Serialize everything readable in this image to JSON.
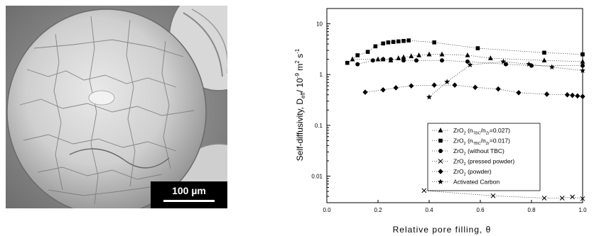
{
  "micrograph": {
    "scale_bar_label": "100 µm"
  },
  "chart_data": {
    "type": "scatter",
    "xlabel": "Relative pore filling, θ",
    "ylabel_parts": {
      "main": "Self-diffusivity, D",
      "sub": "eff",
      "unit": "/ 10",
      "exp": "-9",
      "m": " m",
      "exp2": "2",
      "s": " s",
      "exp3": "-1"
    },
    "xlim": [
      0.0,
      1.0
    ],
    "ylim": [
      0.003,
      20
    ],
    "yscale": "log",
    "xticks": [
      "0.0",
      "0.2",
      "0.4",
      "0.6",
      "0.8",
      "1.0"
    ],
    "yticks": [
      {
        "value": 10,
        "label": "10"
      },
      {
        "value": 1,
        "label": "1"
      },
      {
        "value": 0.1,
        "label": "0.1"
      },
      {
        "value": 0.01,
        "label": "0.01"
      }
    ],
    "legend_position": "center-right",
    "series": [
      {
        "name_parts": [
          "ZrO",
          "2",
          " (n",
          "TBC",
          "/n",
          "Zr",
          "=0.027)"
        ],
        "marker": "triangle",
        "x": [
          0.1,
          0.2,
          0.22,
          0.25,
          0.28,
          0.3,
          0.33,
          0.36,
          0.4,
          0.45,
          0.55,
          0.64,
          0.85,
          1.0
        ],
        "y": [
          2.0,
          2.0,
          2.0,
          1.9,
          2.1,
          2.2,
          2.3,
          2.4,
          2.5,
          2.5,
          2.4,
          2.1,
          1.9,
          1.8
        ]
      },
      {
        "name_parts": [
          "ZrO",
          "2",
          " (n",
          "TBC",
          "/n",
          "Zr",
          "=0.017)"
        ],
        "marker": "square",
        "x": [
          0.08,
          0.12,
          0.16,
          0.19,
          0.22,
          0.24,
          0.26,
          0.28,
          0.3,
          0.32,
          0.42,
          0.59,
          0.85,
          1.0
        ],
        "y": [
          1.7,
          2.4,
          2.8,
          3.6,
          4.1,
          4.3,
          4.4,
          4.5,
          4.6,
          4.7,
          4.3,
          3.3,
          2.7,
          2.5
        ]
      },
      {
        "name_parts": [
          "ZrO",
          "2",
          " (without TBC)"
        ],
        "marker": "circle",
        "x": [
          0.12,
          0.18,
          0.22,
          0.25,
          0.3,
          0.35,
          0.45,
          0.55,
          0.7,
          0.8,
          1.0
        ],
        "y": [
          1.6,
          1.9,
          2.0,
          2.0,
          1.9,
          1.9,
          1.9,
          1.8,
          1.6,
          1.5,
          1.5
        ]
      },
      {
        "name_parts": [
          "ZrO",
          "2",
          " (pressed powder)"
        ],
        "marker": "cross",
        "x": [
          0.38,
          0.65,
          0.85,
          0.92,
          0.96,
          1.0
        ],
        "y": [
          0.0052,
          0.0041,
          0.0037,
          0.0037,
          0.0039,
          0.0036
        ]
      },
      {
        "name_parts": [
          "ZrO",
          "2",
          " (powder)"
        ],
        "marker": "diamond",
        "x": [
          0.15,
          0.22,
          0.27,
          0.33,
          0.42,
          0.5,
          0.58,
          0.67,
          0.75,
          0.86,
          0.94,
          0.96,
          0.98,
          1.0
        ],
        "y": [
          0.45,
          0.5,
          0.55,
          0.6,
          0.62,
          0.62,
          0.56,
          0.52,
          0.44,
          0.41,
          0.4,
          0.39,
          0.38,
          0.37
        ]
      },
      {
        "name_parts": [
          "Activated Carbon"
        ],
        "marker": "star",
        "x": [
          0.4,
          0.47,
          0.56,
          0.69,
          0.79,
          0.88,
          1.0
        ],
        "y": [
          0.36,
          0.72,
          1.55,
          1.8,
          1.6,
          1.4,
          1.2
        ]
      }
    ]
  }
}
